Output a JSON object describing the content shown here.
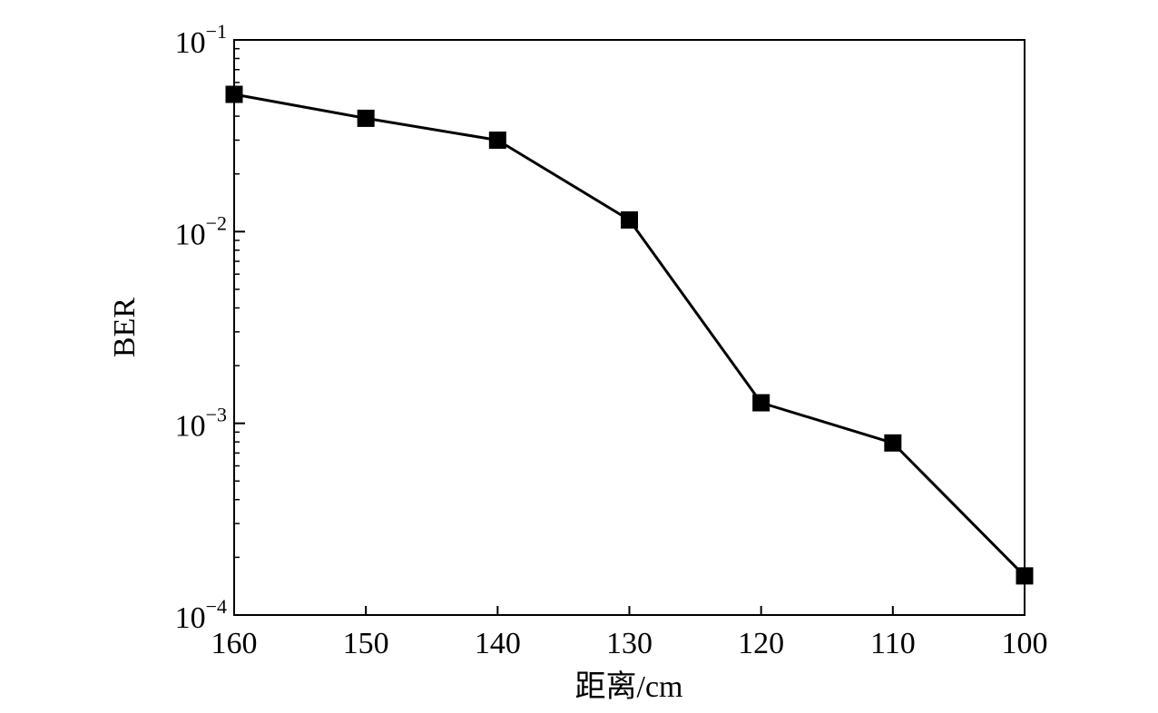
{
  "chart_data": {
    "type": "line",
    "title": "",
    "xlabel": "距离/cm",
    "ylabel": "BER",
    "x_reversed": true,
    "xlim": [
      160,
      100
    ],
    "xticks": [
      160,
      150,
      140,
      130,
      120,
      110,
      100
    ],
    "xtick_labels": [
      "160",
      "150",
      "140",
      "130",
      "120",
      "110",
      "100"
    ],
    "y_scale": "log",
    "ylim": [
      0.0001,
      0.1
    ],
    "yticks": [
      {
        "value": 0.1,
        "base": "10",
        "exp": "−1"
      },
      {
        "value": 0.01,
        "base": "10",
        "exp": "−2"
      },
      {
        "value": 0.001,
        "base": "10",
        "exp": "−3"
      },
      {
        "value": 0.0001,
        "base": "10",
        "exp": "−4"
      }
    ],
    "grid": false,
    "legend": "none",
    "series": [
      {
        "color": "#000000",
        "marker": "square",
        "x": [
          160,
          150,
          140,
          130,
          120,
          110,
          100
        ],
        "values": [
          0.052,
          0.039,
          0.03,
          0.0115,
          0.00128,
          0.00079,
          0.00016
        ]
      }
    ]
  }
}
